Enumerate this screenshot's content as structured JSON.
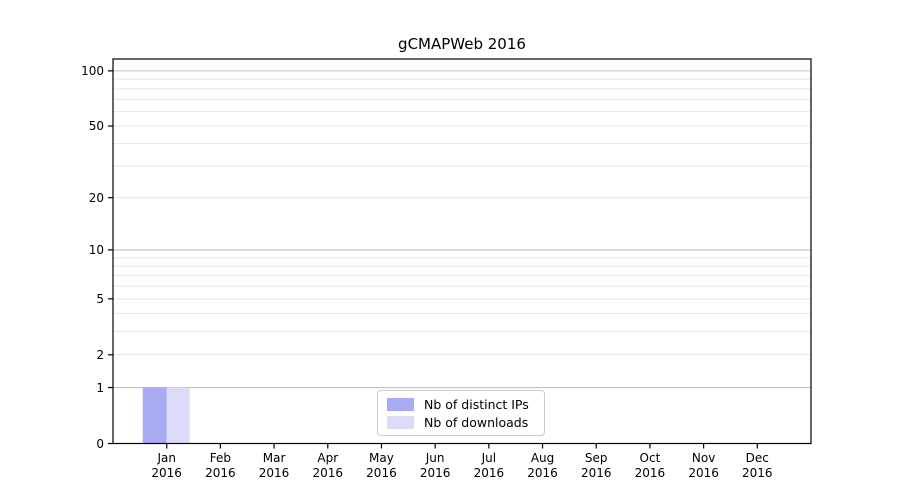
{
  "title": "gCMAPWeb 2016",
  "chart_data": {
    "type": "bar",
    "title": "gCMAPWeb 2016",
    "x_months": [
      "Jan",
      "Feb",
      "Mar",
      "Apr",
      "May",
      "Jun",
      "Jul",
      "Aug",
      "Sep",
      "Oct",
      "Nov",
      "Dec"
    ],
    "x_year": "2016",
    "series": [
      {
        "name": "Nb of distinct IPs",
        "color": "#a9a9f4",
        "values": [
          1,
          0,
          0,
          0,
          0,
          0,
          0,
          0,
          0,
          0,
          0,
          0
        ]
      },
      {
        "name": "Nb of downloads",
        "color": "#dcdcfa",
        "values": [
          1,
          0,
          0,
          0,
          0,
          0,
          0,
          0,
          0,
          0,
          0,
          0
        ]
      }
    ],
    "y_axis": {
      "scale": "log1p",
      "major_ticks": [
        0,
        1,
        2,
        5,
        10,
        20,
        50,
        100
      ],
      "strong_grid": [
        1,
        10,
        100
      ],
      "minor_grid": [
        3,
        4,
        6,
        7,
        8,
        9,
        30,
        40,
        60,
        70,
        80,
        90
      ],
      "ylim": [
        0,
        116
      ]
    },
    "legend_position": "bottom-center",
    "grid": "on",
    "colors": {
      "strong_grid": "#c2c2c2",
      "minor_grid": "#e8e8e8",
      "spine": "#000000",
      "background": "#ffffff"
    }
  }
}
